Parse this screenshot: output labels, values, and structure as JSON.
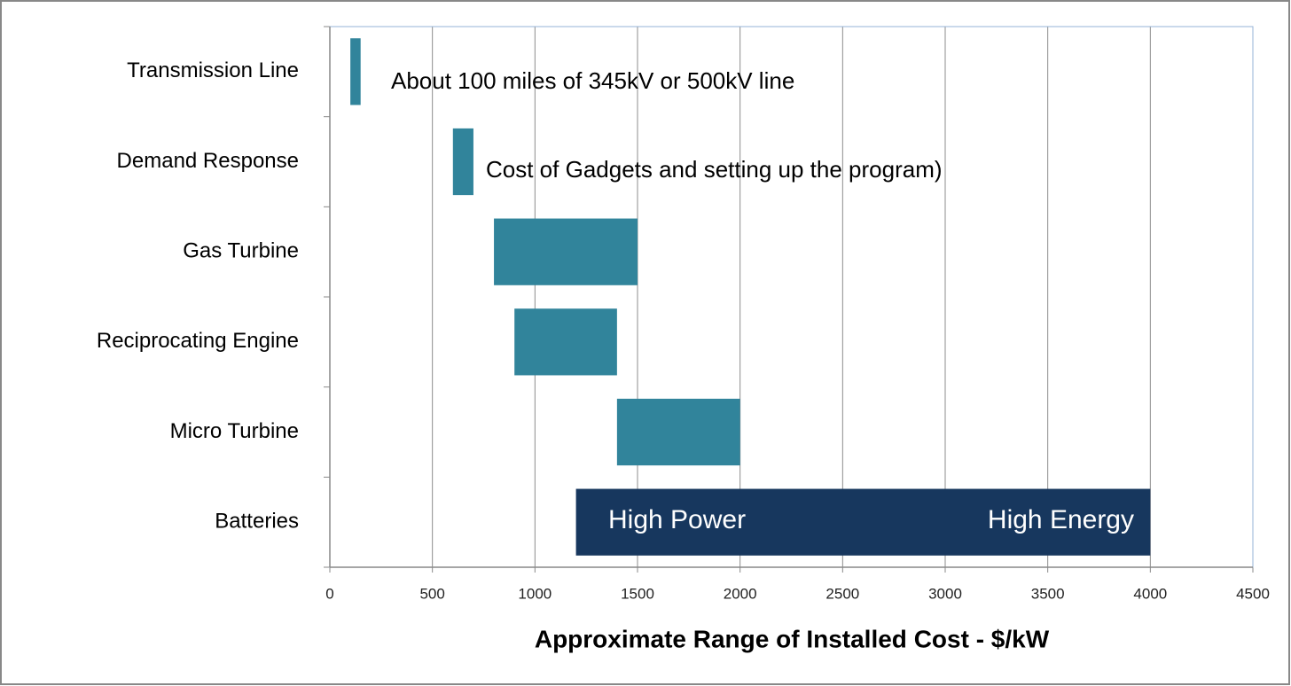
{
  "chart_data": {
    "type": "range_bar",
    "categories": [
      "Transmission Line",
      "Demand Response",
      "Gas Turbine",
      "Reciprocating Engine",
      "Micro Turbine",
      "Batteries"
    ],
    "low": [
      100,
      600,
      800,
      900,
      1400,
      1200
    ],
    "high": [
      150,
      700,
      1500,
      1400,
      2000,
      4000
    ],
    "colors": [
      "#31849b",
      "#31849b",
      "#31849b",
      "#31849b",
      "#31849b",
      "#17375e"
    ],
    "xlim": [
      0,
      4500
    ],
    "xticks": [
      0,
      500,
      1000,
      1500,
      2000,
      2500,
      3000,
      3500,
      4000,
      4500
    ],
    "grid": true,
    "x_label": "Approximate Range of Installed Cost - $/kW",
    "annotations": [
      "About 100 miles of 345kV or 500kV line",
      "Cost of Gadgets  and setting up the program)",
      "High Power",
      "High Energy"
    ]
  }
}
